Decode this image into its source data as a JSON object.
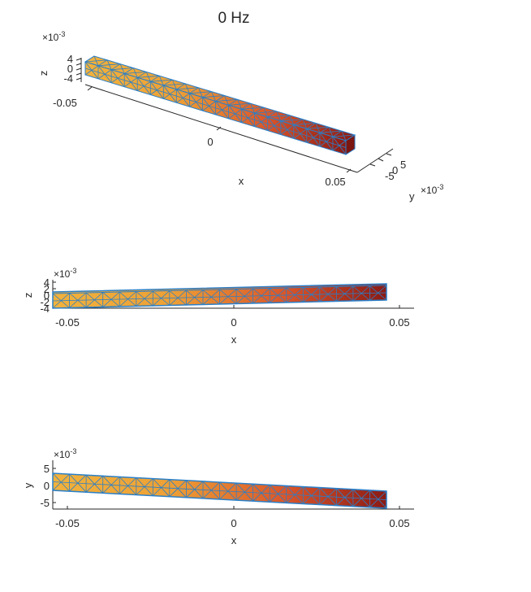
{
  "title": "0 Hz",
  "colors": {
    "edge": "#2a7fc8",
    "axis": "#262626",
    "grad_left": "#f1b23c",
    "grad_mid": "#e06a24",
    "grad_right": "#8a1a14"
  },
  "views": {
    "iso": {
      "exp_base": "×10",
      "exp_power": "-3",
      "z_label": "z",
      "z_ticks": [
        "4",
        "0",
        "-4"
      ],
      "x_label": "x",
      "x_ticks": [
        "-0.05",
        "0",
        "0.05"
      ],
      "y_label": "y",
      "y_ticks": [
        "-5",
        "0",
        "5"
      ],
      "y_exp_base": "×10",
      "y_exp_power": "-3"
    },
    "xz": {
      "exp_base": "×10",
      "exp_power": "-3",
      "z_label": "z",
      "z_ticks": [
        "4",
        "2",
        "0",
        "-2",
        "-4"
      ],
      "x_label": "x",
      "x_ticks": [
        "-0.05",
        "0",
        "0.05"
      ]
    },
    "xy": {
      "exp_base": "×10",
      "exp_power": "-3",
      "y_label": "y",
      "y_ticks": [
        "5",
        "0",
        "-5"
      ],
      "x_label": "x",
      "x_ticks": [
        "-0.05",
        "0",
        "0.05"
      ]
    }
  }
}
